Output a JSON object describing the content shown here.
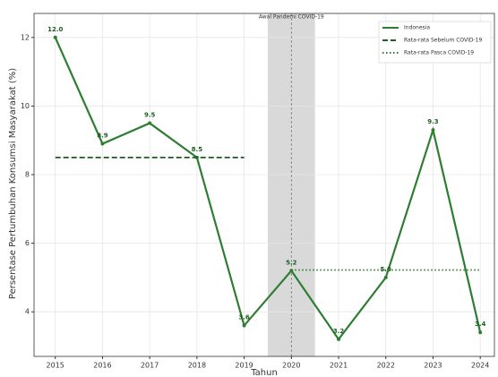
{
  "chart_data": {
    "type": "line",
    "y_label": "Persentase Pertumbuhan Konsumsi Masyarakat (%)",
    "x_label": "Tahun",
    "x": [
      2015,
      2016,
      2017,
      2018,
      2019,
      2020,
      2021,
      2022,
      2023,
      2024
    ],
    "series": [
      {
        "name": "Indonesia",
        "color": "#2e7d32",
        "linestyle": "solid",
        "values": [
          12.0,
          8.9,
          9.5,
          8.5,
          3.6,
          5.2,
          3.2,
          5.0,
          9.3,
          3.4
        ],
        "value_labels": [
          "12.0",
          "8.9",
          "9.5",
          "8.5",
          "3.6",
          "5.2",
          "3.2",
          "5.0",
          "9.3",
          "3.4"
        ]
      },
      {
        "name": "Rata-rata Sebelum COVID-19",
        "color": "#1b5e20",
        "linestyle": "dashed",
        "x": [
          2015,
          2019
        ],
        "values": [
          8.5,
          8.5
        ]
      },
      {
        "name": "Rata-rata Pasca COVID-19",
        "color": "#2e7d32",
        "linestyle": "dotted",
        "x": [
          2020,
          2024
        ],
        "values": [
          5.22,
          5.22
        ]
      }
    ],
    "span": [
      2019.5,
      2020.5
    ],
    "span_color": "#d9d9d9",
    "vline": 2020,
    "annotation": "Awal Pandemi COVID-19",
    "xlim": [
      2014.55,
      2024.3
    ],
    "ylim": [
      2.7,
      12.7
    ],
    "xticks": [
      2015,
      2016,
      2017,
      2018,
      2019,
      2020,
      2021,
      2022,
      2023,
      2024
    ],
    "yticks": [
      4,
      6,
      8,
      10,
      12
    ],
    "grid": true,
    "legend": "upper right"
  }
}
